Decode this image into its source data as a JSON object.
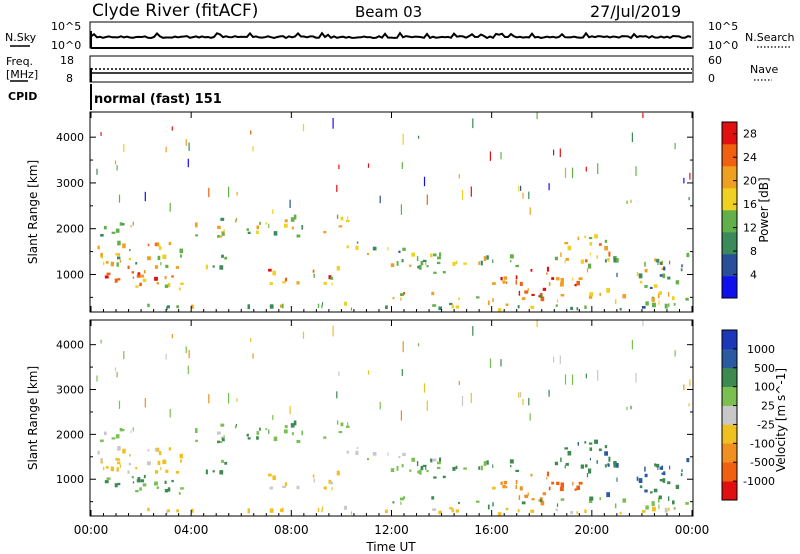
{
  "header": {
    "station": "Clyde River (fitACF)",
    "beam": "Beam 03",
    "date": "27/Jul/2019"
  },
  "top_panels": {
    "nsky_label": "N.Sky",
    "nsky_ticks": [
      "10^5",
      "10^0"
    ],
    "nsearch_label": "N.Search",
    "nsearch_ticks": [
      "10^5",
      "10^0"
    ],
    "freq_label": "Freq.",
    "freq_unit": "[MHz]",
    "freq_ticks": [
      "18",
      "8"
    ],
    "nave_label": "Nave",
    "nave_ticks": [
      "60",
      "0"
    ],
    "cpid_label": "CPID",
    "cpid_text": "normal (fast) 151"
  },
  "colors": {
    "power_scale": [
      "#1010ee",
      "#2a4f9a",
      "#3a8a5a",
      "#62b04a",
      "#f0d020",
      "#f0a020",
      "#f06010",
      "#e01010"
    ],
    "velocity_scale": [
      "#e01010",
      "#f06010",
      "#f09020",
      "#f0c020",
      "#c8c8c8",
      "#7ac050",
      "#3c8a50",
      "#2a5aa0",
      "#1a38b8"
    ]
  },
  "chart_data": [
    {
      "type": "heatmap",
      "name": "power",
      "xlabel": "",
      "ylabel": "Slant Range [km]",
      "xlim": [
        0,
        24
      ],
      "ylim": [
        180,
        4550
      ],
      "yticks": [
        1000,
        2000,
        3000,
        4000
      ],
      "yticklabels": [
        "1000",
        "2000",
        "3000",
        "4000"
      ],
      "colorbar_label": "Power [dB]",
      "colorbar_ticks": [
        "4",
        "8",
        "12",
        "16",
        "20",
        "24",
        "28"
      ],
      "colorbar_range": [
        0,
        30
      ]
    },
    {
      "type": "heatmap",
      "name": "velocity",
      "xlabel": "Time UT",
      "ylabel": "Slant Range [km]",
      "xlim": [
        0,
        24
      ],
      "ylim": [
        180,
        4550
      ],
      "xticks": [
        0,
        4,
        8,
        12,
        16,
        20,
        24
      ],
      "xticklabels": [
        "00:00",
        "04:00",
        "08:00",
        "12:00",
        "16:00",
        "20:00",
        "00:00"
      ],
      "yticks": [
        1000,
        2000,
        3000,
        4000
      ],
      "yticklabels": [
        "1000",
        "2000",
        "3000",
        "4000"
      ],
      "colorbar_label": "Velocity [m s^-1]",
      "colorbar_ticks": [
        "-1000",
        "-500",
        "-100",
        "-25",
        "25",
        "100",
        "500",
        "1000"
      ]
    }
  ]
}
